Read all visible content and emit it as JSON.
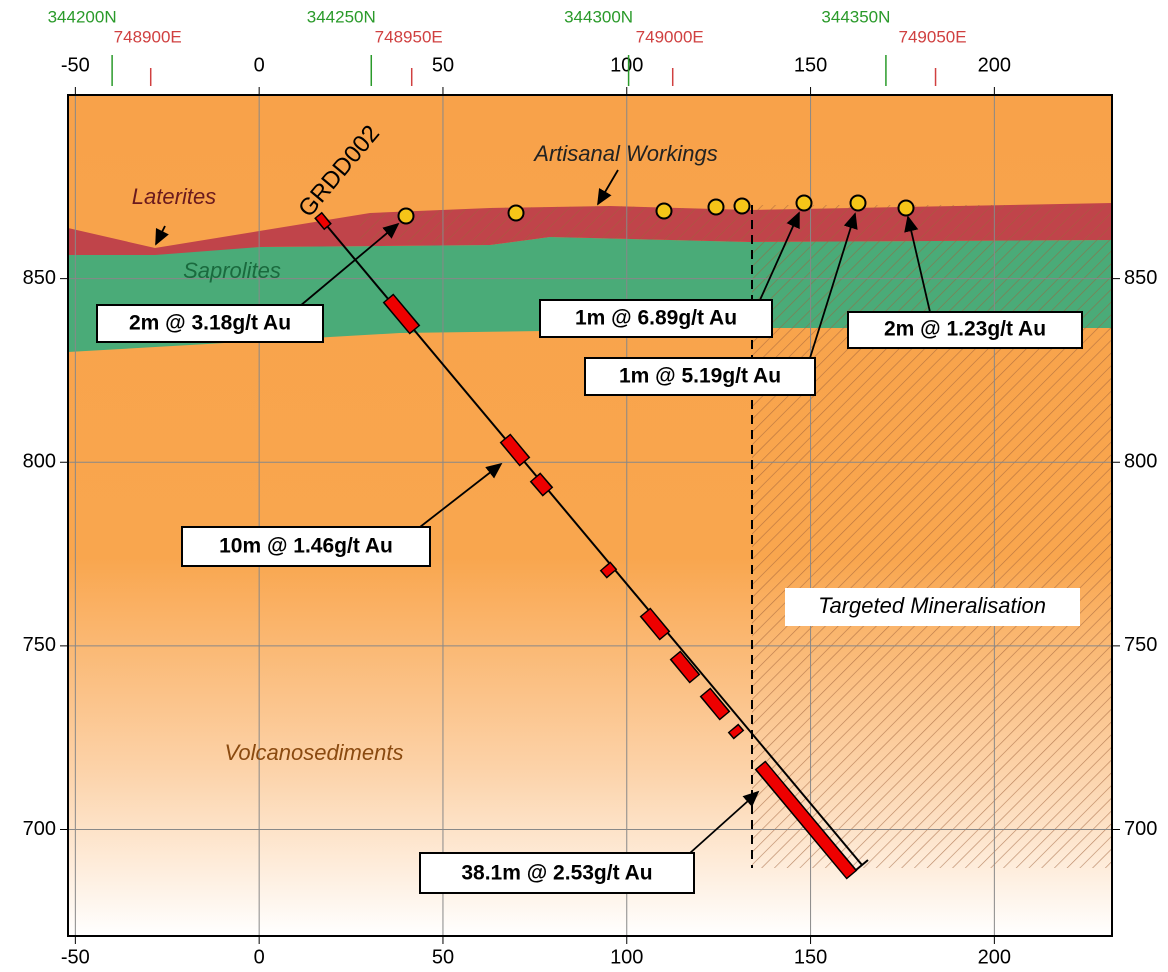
{
  "chart_data": {
    "type": "cross-section",
    "xlim": [
      -52,
      232
    ],
    "ylim": [
      671,
      900
    ],
    "xticks": [
      -50,
      0,
      50,
      100,
      150,
      200
    ],
    "yticks": [
      700,
      750,
      800,
      850
    ],
    "grid": true,
    "northing_ticks": [
      {
        "value": -40,
        "label": "344200N"
      },
      {
        "value": 30.5,
        "label": "344250N"
      },
      {
        "value": 100.5,
        "label": "344300N"
      },
      {
        "value": 170.5,
        "label": "344350N"
      }
    ],
    "easting_ticks": [
      {
        "value": -29.5,
        "label": "748900E"
      },
      {
        "value": 41.5,
        "label": "748950E"
      },
      {
        "value": 112.5,
        "label": "749000E"
      },
      {
        "value": 184,
        "label": "749050E"
      }
    ],
    "units": {
      "laterites": "Laterites",
      "saprolites": "Saprolites",
      "volcanosediments": "Volcanosediments"
    },
    "artisanal": "Artisanal Workings",
    "hole": "GRDD002",
    "target": "Targeted Mineralisation",
    "intercepts": [
      "2m @ 3.18g/t Au",
      "1m @ 6.89g/t Au",
      "2m @ 1.23g/t Au",
      "1m @ 5.19g/t Au",
      "10m @ 1.46g/t Au",
      "38.1m @ 2.53g/t Au"
    ]
  }
}
